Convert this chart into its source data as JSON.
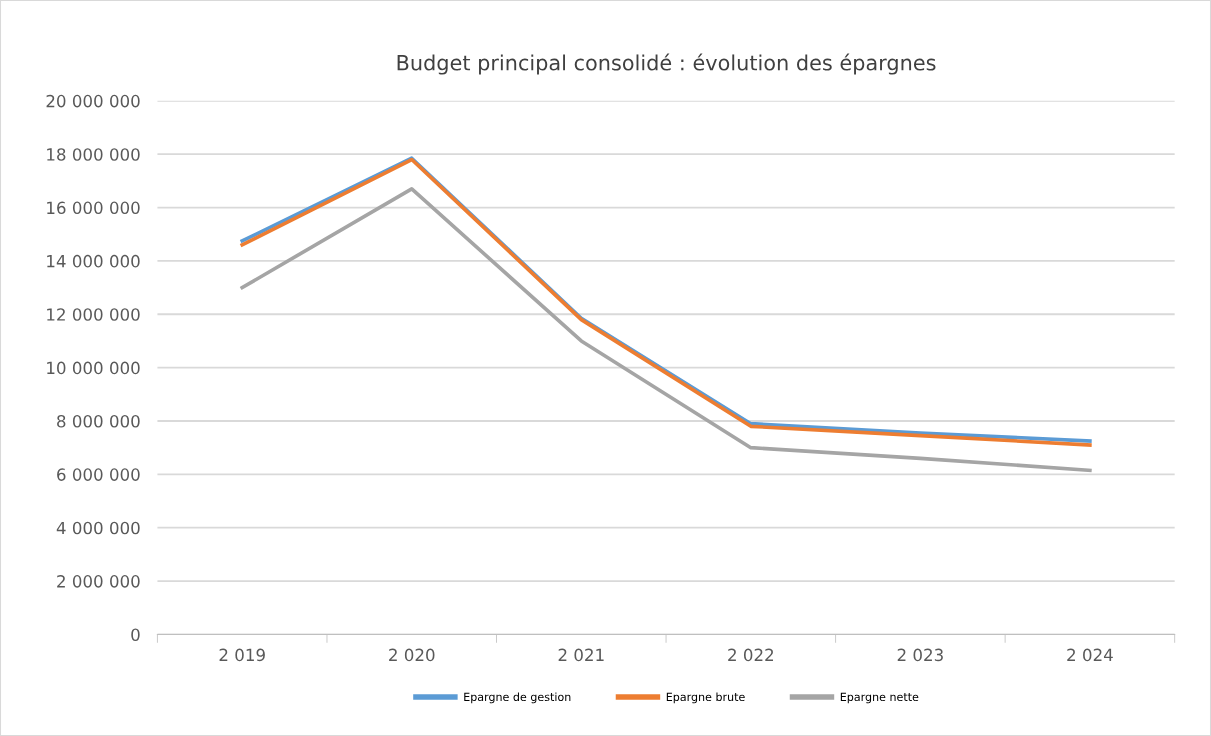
{
  "chart_data": {
    "type": "line",
    "title": "Budget principal consolidé : évolution des épargnes",
    "categories": [
      "2 019",
      "2 020",
      "2 021",
      "2 022",
      "2 023",
      "2 024"
    ],
    "series": [
      {
        "name": "Epargne de gestion",
        "color": "#5b9bd5",
        "values": [
          14750000,
          17850000,
          11850000,
          7900000,
          7550000,
          7250000
        ]
      },
      {
        "name": "Epargne brute",
        "color": "#ed7d31",
        "values": [
          14600000,
          17800000,
          11800000,
          7800000,
          7450000,
          7100000
        ]
      },
      {
        "name": "Epargne nette",
        "color": "#a5a5a5",
        "values": [
          13000000,
          16700000,
          11000000,
          7000000,
          6600000,
          6150000
        ]
      }
    ],
    "ylim": [
      0,
      20000000
    ],
    "yticks": [
      {
        "value": 0,
        "label": "0"
      },
      {
        "value": 2000000,
        "label": "2 000 000"
      },
      {
        "value": 4000000,
        "label": "4 000 000"
      },
      {
        "value": 6000000,
        "label": "6 000 000"
      },
      {
        "value": 8000000,
        "label": "8 000 000"
      },
      {
        "value": 10000000,
        "label": "10 000 000"
      },
      {
        "value": 12000000,
        "label": "12 000 000"
      },
      {
        "value": 14000000,
        "label": "14 000 000"
      },
      {
        "value": 16000000,
        "label": "16 000 000"
      },
      {
        "value": 18000000,
        "label": "18 000 000"
      },
      {
        "value": 20000000,
        "label": "20 000 000"
      }
    ],
    "grid": "y",
    "legend": "bottom",
    "marker": "none",
    "line_style": "solid"
  }
}
